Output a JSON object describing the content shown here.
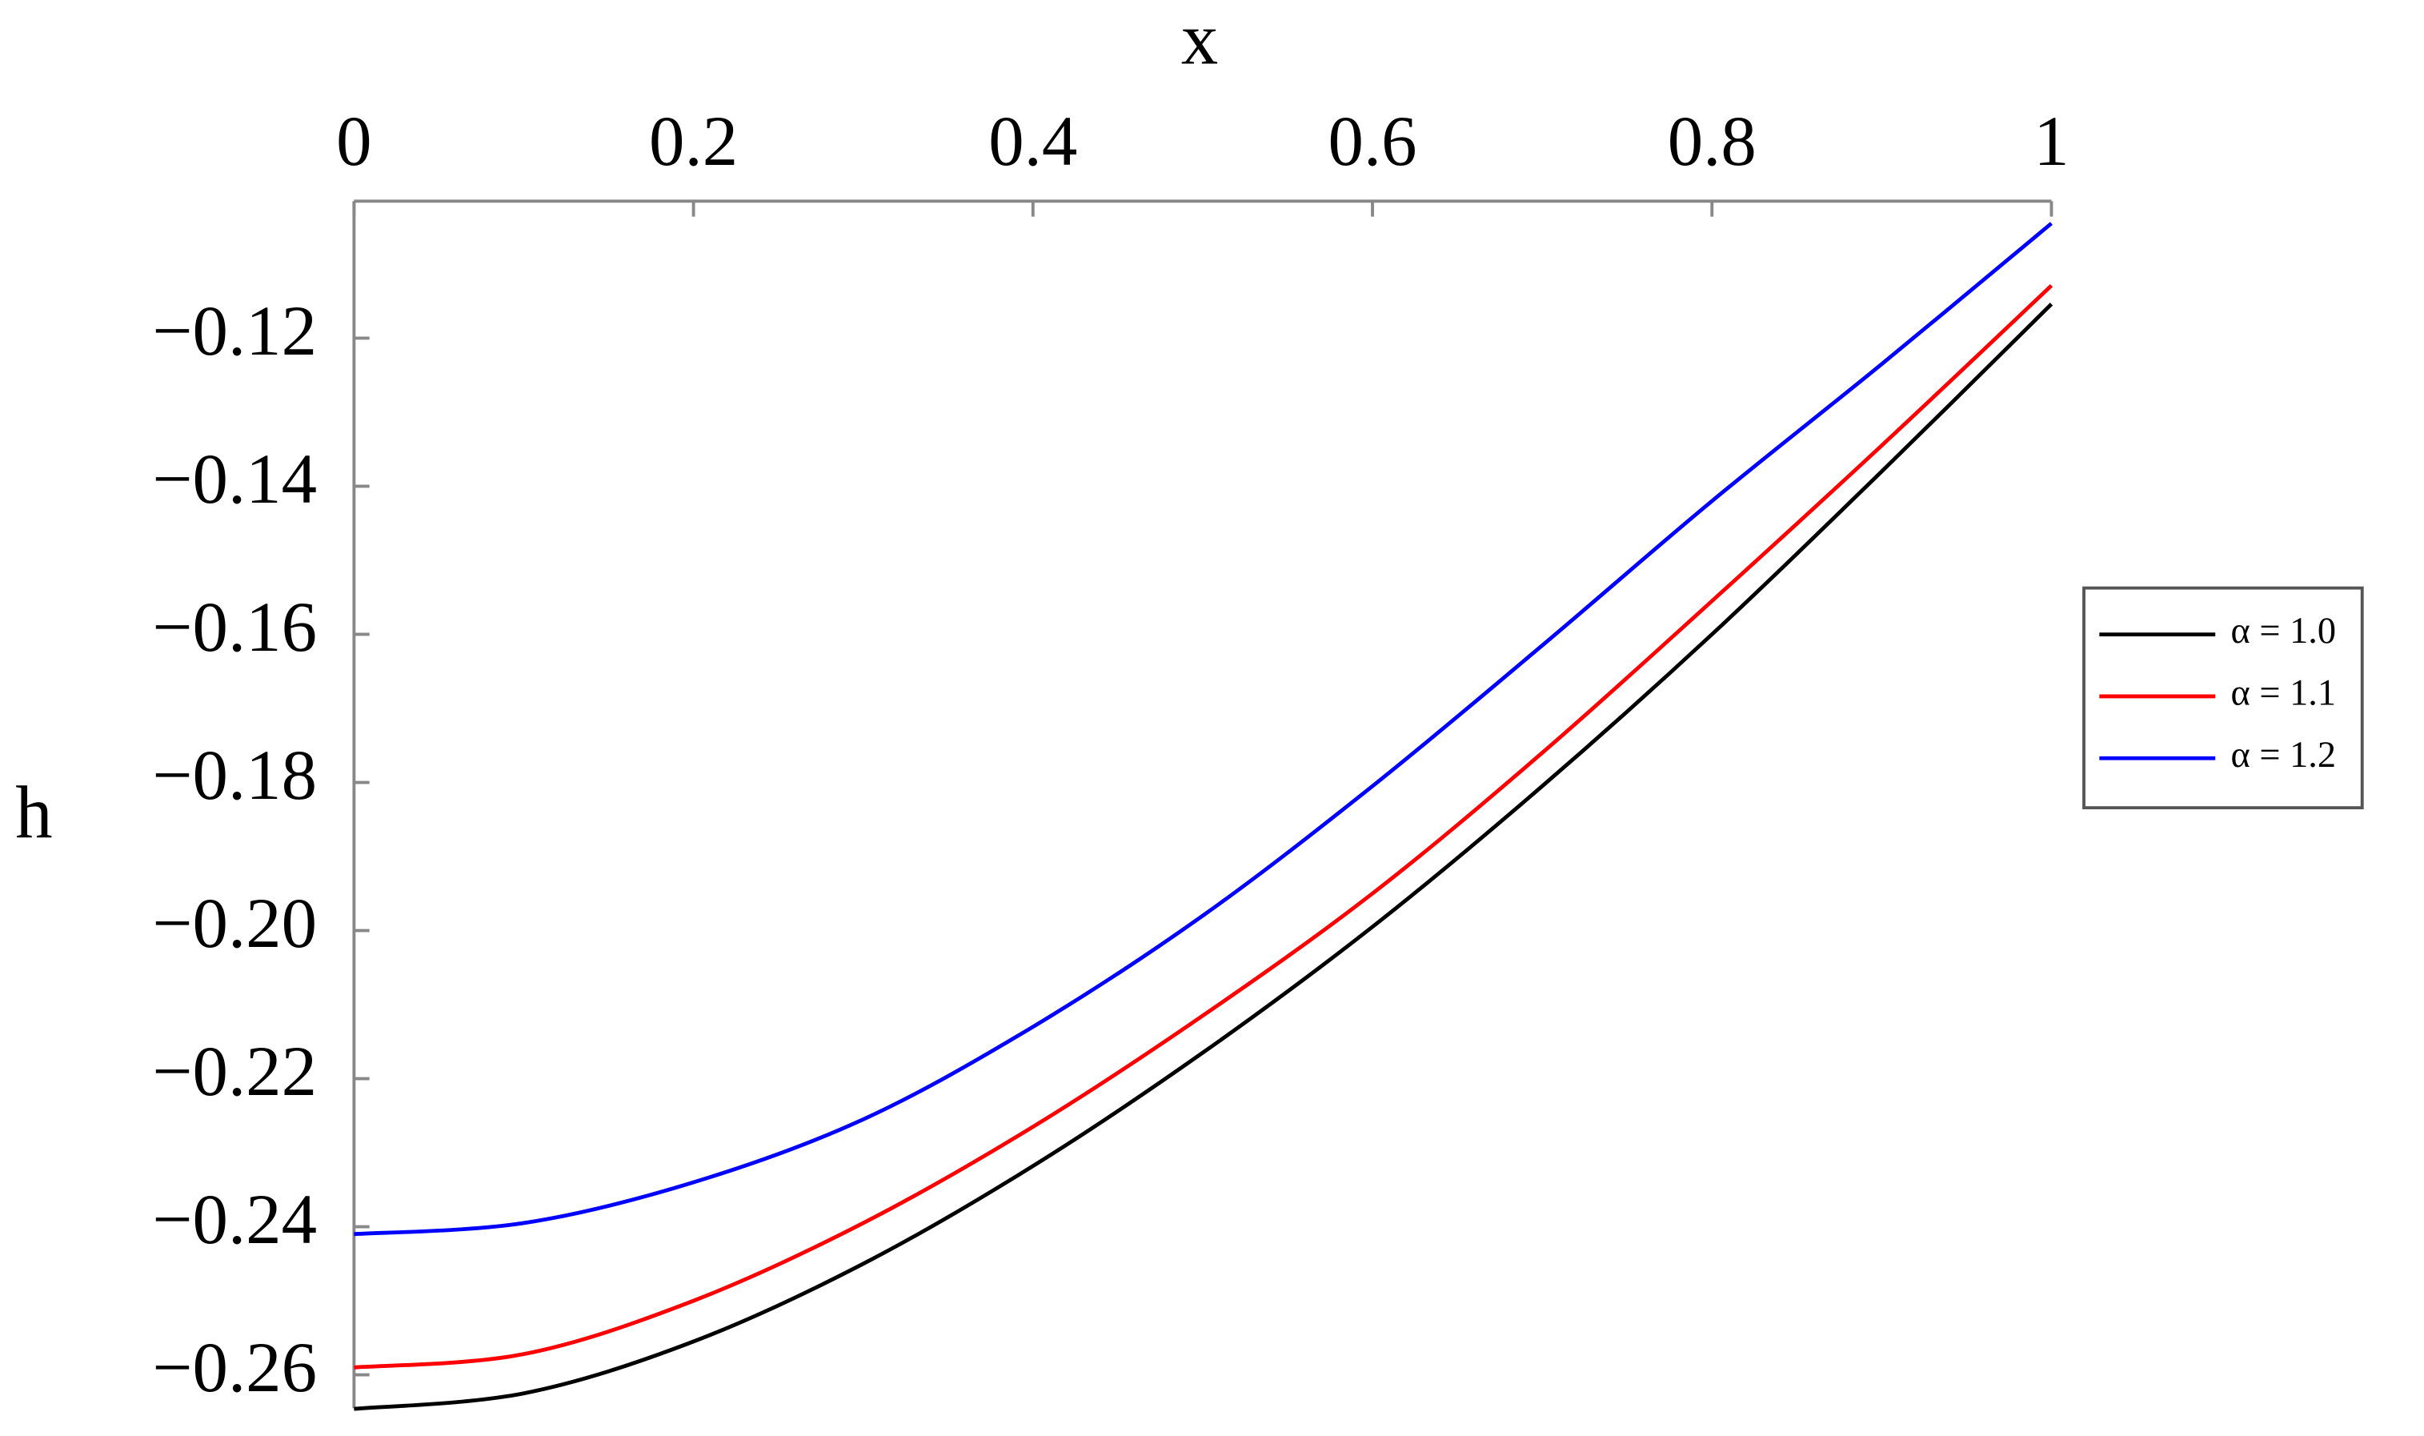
{
  "chart_data": {
    "type": "line",
    "x_label": "x",
    "y_label": "h",
    "x": [
      0,
      0.1,
      0.2,
      0.3,
      0.4,
      0.5,
      0.6,
      0.7,
      0.8,
      0.9,
      1
    ],
    "series": [
      {
        "name": "α = 1.0",
        "color": "#000000",
        "values": [
          -0.2646,
          -0.2625,
          -0.2555,
          -0.245,
          -0.2318,
          -0.2165,
          -0.1995,
          -0.1805,
          -0.16,
          -0.138,
          -0.1154
        ]
      },
      {
        "name": "α = 1.1",
        "color": "#ff0000",
        "values": [
          -0.259,
          -0.2572,
          -0.25,
          -0.2395,
          -0.2265,
          -0.2115,
          -0.195,
          -0.176,
          -0.1555,
          -0.1345,
          -0.1129
        ]
      },
      {
        "name": "α = 1.2",
        "color": "#0000ff",
        "values": [
          -0.241,
          -0.2395,
          -0.234,
          -0.2255,
          -0.213,
          -0.198,
          -0.1805,
          -0.1615,
          -0.142,
          -0.1235,
          -0.1045
        ]
      }
    ],
    "xlim": [
      0,
      1
    ],
    "ylim": [
      -0.2645,
      -0.1015
    ],
    "xticks": [
      0,
      0.2,
      0.4,
      0.6,
      0.8,
      1
    ],
    "yticks": [
      {
        "value": -0.12,
        "label": "−0.12"
      },
      {
        "value": -0.14,
        "label": "−0.14"
      },
      {
        "value": -0.16,
        "label": "−0.16"
      },
      {
        "value": -0.18,
        "label": "−0.18"
      },
      {
        "value": -0.2,
        "label": "−0.20"
      },
      {
        "value": -0.22,
        "label": "−0.22"
      },
      {
        "value": -0.24,
        "label": "−0.24"
      },
      {
        "value": -0.26,
        "label": "−0.26"
      }
    ],
    "legend": "right"
  }
}
